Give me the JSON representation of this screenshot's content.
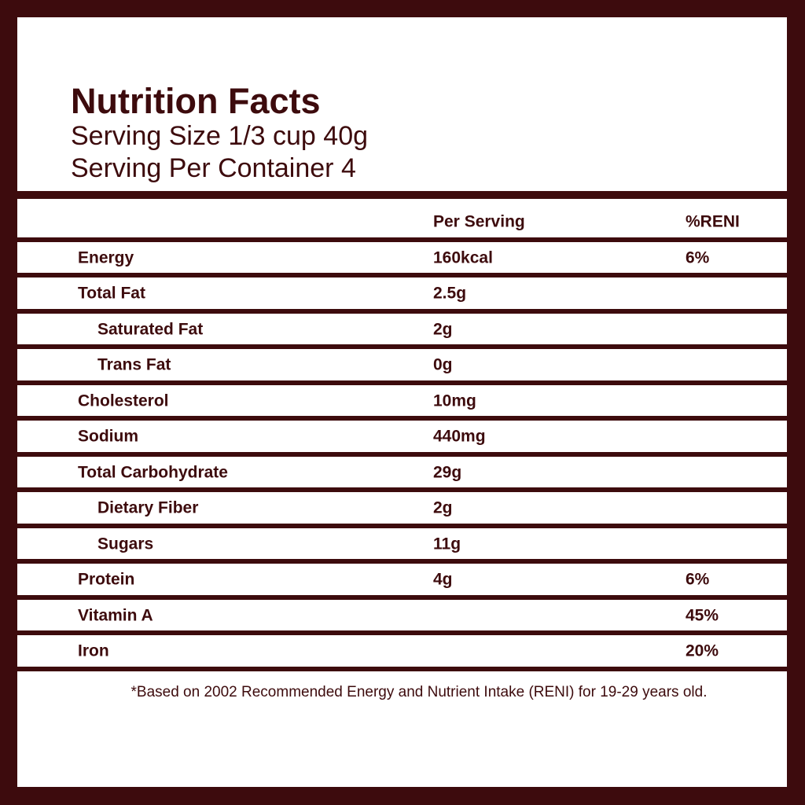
{
  "title": "Nutrition Facts",
  "serving_size": "Serving Size 1/3 cup 40g",
  "servings_per_container": "Serving Per Container 4",
  "table": {
    "header": {
      "per_serving": "Per Serving",
      "reni": "%RENI"
    },
    "rows": [
      {
        "label": "Energy",
        "per_serving": "160kcal",
        "reni": "6%"
      },
      {
        "label": "Total Fat",
        "per_serving": "2.5g",
        "sub": [
          {
            "label": "Saturated Fat",
            "per_serving": "2g"
          },
          {
            "label": "Trans Fat",
            "per_serving": "0g"
          }
        ]
      },
      {
        "label": "Cholesterol",
        "per_serving": "10mg"
      },
      {
        "label": "Sodium",
        "per_serving": "440mg"
      },
      {
        "label": "Total Carbohydrate",
        "per_serving": "29g",
        "sub": [
          {
            "label": "Dietary Fiber",
            "per_serving": "2g"
          },
          {
            "label": "Sugars",
            "per_serving": "11g"
          }
        ]
      },
      {
        "label": "Protein",
        "per_serving": "4g",
        "reni": "6%"
      },
      {
        "label": "Vitamin A",
        "reni": "45%"
      },
      {
        "label": "Iron",
        "reni": "20%"
      }
    ]
  },
  "footnote": "*Based on 2002 Recommended Energy and Nutrient Intake (RENI) for 19-29 years old."
}
